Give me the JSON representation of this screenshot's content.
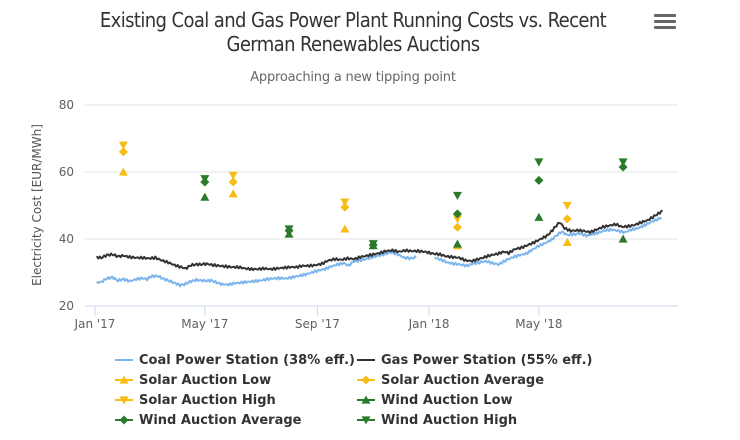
{
  "header": {
    "title_line1": "Existing Coal and Gas Power Plant Running Costs vs. Recent",
    "title_line2": "German Renewables Auctions",
    "subtitle": "Approaching a new tipping point",
    "menu_icon": "hamburger-menu-icon"
  },
  "colors": {
    "coal": "#7cb5ec",
    "gas": "#333333",
    "solar": "#f7bd13",
    "wind": "#2b7a2b",
    "grid": "#e6e6e6",
    "axis": "#ccd6eb"
  },
  "chart_data": {
    "type": "scatter",
    "title": "Existing Coal and Gas Power Plant Running Costs vs. Recent German Renewables Auctions",
    "subtitle": "Approaching a new tipping point",
    "xlabel": "",
    "ylabel": "Electricity Cost [EUR/MWh]",
    "ylim": [
      20,
      80
    ],
    "yticks": [
      20,
      40,
      60,
      80
    ],
    "xlim": [
      "2017-01-01",
      "2018-09-30"
    ],
    "xticks": [
      {
        "date": "2017-01-01",
        "label": "Jan '17"
      },
      {
        "date": "2017-05-01",
        "label": "May '17"
      },
      {
        "date": "2017-09-01",
        "label": "Sep '17"
      },
      {
        "date": "2018-01-01",
        "label": "Jan '18"
      },
      {
        "date": "2018-05-01",
        "label": "May '18"
      }
    ],
    "grid": true,
    "legend_position": "bottom",
    "lines": [
      {
        "name": "Coal Power Station (38% eff.)",
        "color": "#7cb5ec",
        "points": [
          [
            "2017-01-03",
            27.0
          ],
          [
            "2017-01-08",
            27.2
          ],
          [
            "2017-01-14",
            28.2
          ],
          [
            "2017-01-20",
            28.6
          ],
          [
            "2017-01-26",
            27.6
          ],
          [
            "2017-02-01",
            28.0
          ],
          [
            "2017-02-08",
            27.4
          ],
          [
            "2017-02-15",
            28.0
          ],
          [
            "2017-02-22",
            28.3
          ],
          [
            "2017-02-27",
            28.0
          ],
          [
            "2017-03-03",
            28.8
          ],
          [
            "2017-03-10",
            29.0
          ],
          [
            "2017-03-16",
            28.2
          ],
          [
            "2017-03-22",
            27.6
          ],
          [
            "2017-03-28",
            27.0
          ],
          [
            "2017-04-04",
            26.2
          ],
          [
            "2017-04-10",
            26.6
          ],
          [
            "2017-04-16",
            27.4
          ],
          [
            "2017-04-22",
            27.8
          ],
          [
            "2017-04-27",
            27.6
          ],
          [
            "2017-05-03",
            27.5
          ],
          [
            "2017-05-08",
            27.6
          ],
          [
            "2017-05-14",
            27.0
          ],
          [
            "2017-05-20",
            26.5
          ],
          [
            "2017-05-27",
            26.4
          ],
          [
            "2017-06-03",
            26.8
          ],
          [
            "2017-06-10",
            27.0
          ],
          [
            "2017-06-17",
            27.2
          ],
          [
            "2017-06-24",
            27.4
          ],
          [
            "2017-07-01",
            27.6
          ],
          [
            "2017-07-08",
            28.0
          ],
          [
            "2017-07-15",
            28.2
          ],
          [
            "2017-07-22",
            28.3
          ],
          [
            "2017-07-29",
            28.2
          ],
          [
            "2017-08-05",
            28.6
          ],
          [
            "2017-08-12",
            29.0
          ],
          [
            "2017-08-19",
            29.4
          ],
          [
            "2017-08-26",
            30.0
          ],
          [
            "2017-09-02",
            30.6
          ],
          [
            "2017-09-09",
            31.0
          ],
          [
            "2017-09-16",
            31.8
          ],
          [
            "2017-09-23",
            32.4
          ],
          [
            "2017-09-30",
            32.8
          ],
          [
            "2017-10-05",
            32.0
          ],
          [
            "2017-10-10",
            33.2
          ],
          [
            "2017-10-17",
            33.6
          ],
          [
            "2017-10-24",
            34.0
          ],
          [
            "2017-10-31",
            34.6
          ],
          [
            "2017-11-07",
            35.0
          ],
          [
            "2017-11-14",
            35.6
          ],
          [
            "2017-11-21",
            36.0
          ],
          [
            "2017-11-28",
            35.4
          ],
          [
            "2017-12-05",
            34.4
          ],
          [
            "2017-12-12",
            34.2
          ],
          [
            "2017-12-18",
            34.6
          ],
          [
            "2018-01-07",
            34.4
          ],
          [
            "2018-01-14",
            33.8
          ],
          [
            "2018-01-21",
            33.0
          ],
          [
            "2018-01-28",
            32.6
          ],
          [
            "2018-02-04",
            32.4
          ],
          [
            "2018-02-11",
            32.0
          ],
          [
            "2018-02-18",
            32.6
          ],
          [
            "2018-02-25",
            33.0
          ],
          [
            "2018-03-04",
            33.4
          ],
          [
            "2018-03-11",
            32.8
          ],
          [
            "2018-03-18",
            32.4
          ],
          [
            "2018-03-27",
            33.8
          ],
          [
            "2018-04-03",
            34.6
          ],
          [
            "2018-04-10",
            35.2
          ],
          [
            "2018-04-17",
            35.6
          ],
          [
            "2018-04-24",
            36.8
          ],
          [
            "2018-05-01",
            38.0
          ],
          [
            "2018-05-08",
            38.8
          ],
          [
            "2018-05-15",
            39.8
          ],
          [
            "2018-05-20",
            41.0
          ],
          [
            "2018-05-26",
            42.2
          ],
          [
            "2018-06-01",
            41.2
          ],
          [
            "2018-06-08",
            41.4
          ],
          [
            "2018-06-15",
            41.6
          ],
          [
            "2018-06-22",
            41.0
          ],
          [
            "2018-06-29",
            41.4
          ],
          [
            "2018-07-06",
            42.0
          ],
          [
            "2018-07-13",
            42.6
          ],
          [
            "2018-07-20",
            42.8
          ],
          [
            "2018-07-27",
            42.4
          ],
          [
            "2018-08-03",
            42.0
          ],
          [
            "2018-08-10",
            42.8
          ],
          [
            "2018-08-17",
            43.2
          ],
          [
            "2018-08-24",
            44.0
          ],
          [
            "2018-08-31",
            45.0
          ],
          [
            "2018-09-07",
            45.8
          ],
          [
            "2018-09-12",
            46.4
          ]
        ]
      },
      {
        "name": "Gas Power Station (55% eff.)",
        "color": "#333333",
        "points": [
          [
            "2017-01-03",
            34.6
          ],
          [
            "2017-01-08",
            34.4
          ],
          [
            "2017-01-14",
            35.2
          ],
          [
            "2017-01-20",
            35.4
          ],
          [
            "2017-01-26",
            34.8
          ],
          [
            "2017-02-01",
            35.0
          ],
          [
            "2017-02-08",
            34.6
          ],
          [
            "2017-02-15",
            34.4
          ],
          [
            "2017-02-22",
            34.4
          ],
          [
            "2017-03-01",
            34.2
          ],
          [
            "2017-03-08",
            34.4
          ],
          [
            "2017-03-15",
            33.6
          ],
          [
            "2017-03-22",
            33.0
          ],
          [
            "2017-03-29",
            32.2
          ],
          [
            "2017-04-05",
            31.6
          ],
          [
            "2017-04-10",
            31.2
          ],
          [
            "2017-04-16",
            32.2
          ],
          [
            "2017-04-22",
            32.4
          ],
          [
            "2017-04-27",
            32.4
          ],
          [
            "2017-05-03",
            32.6
          ],
          [
            "2017-05-10",
            32.2
          ],
          [
            "2017-05-17",
            32.0
          ],
          [
            "2017-05-24",
            31.8
          ],
          [
            "2017-05-31",
            31.6
          ],
          [
            "2017-06-07",
            31.6
          ],
          [
            "2017-06-14",
            31.2
          ],
          [
            "2017-06-21",
            31.0
          ],
          [
            "2017-06-28",
            31.0
          ],
          [
            "2017-07-05",
            31.2
          ],
          [
            "2017-07-12",
            31.0
          ],
          [
            "2017-07-19",
            31.2
          ],
          [
            "2017-07-26",
            31.4
          ],
          [
            "2017-08-02",
            31.6
          ],
          [
            "2017-08-09",
            31.6
          ],
          [
            "2017-08-16",
            32.0
          ],
          [
            "2017-08-23",
            32.0
          ],
          [
            "2017-08-30",
            32.2
          ],
          [
            "2017-09-06",
            32.6
          ],
          [
            "2017-09-13",
            33.6
          ],
          [
            "2017-09-20",
            34.0
          ],
          [
            "2017-09-27",
            33.8
          ],
          [
            "2017-10-04",
            34.2
          ],
          [
            "2017-10-11",
            34.0
          ],
          [
            "2017-10-18",
            34.6
          ],
          [
            "2017-10-25",
            35.0
          ],
          [
            "2017-11-01",
            35.4
          ],
          [
            "2017-11-08",
            35.8
          ],
          [
            "2017-11-15",
            36.4
          ],
          [
            "2017-11-22",
            36.6
          ],
          [
            "2017-11-29",
            36.2
          ],
          [
            "2017-12-06",
            36.6
          ],
          [
            "2017-12-13",
            36.4
          ],
          [
            "2017-12-20",
            36.4
          ],
          [
            "2017-12-27",
            36.2
          ],
          [
            "2018-01-06",
            35.6
          ],
          [
            "2018-01-13",
            35.4
          ],
          [
            "2018-01-20",
            34.8
          ],
          [
            "2018-01-27",
            34.6
          ],
          [
            "2018-02-03",
            34.4
          ],
          [
            "2018-02-10",
            33.6
          ],
          [
            "2018-02-17",
            33.4
          ],
          [
            "2018-02-24",
            34.0
          ],
          [
            "2018-03-03",
            34.6
          ],
          [
            "2018-03-10",
            35.2
          ],
          [
            "2018-03-17",
            35.6
          ],
          [
            "2018-03-24",
            36.2
          ],
          [
            "2018-03-29",
            35.8
          ],
          [
            "2018-04-05",
            37.0
          ],
          [
            "2018-04-12",
            37.4
          ],
          [
            "2018-04-19",
            38.2
          ],
          [
            "2018-04-26",
            39.0
          ],
          [
            "2018-05-03",
            40.0
          ],
          [
            "2018-05-10",
            41.0
          ],
          [
            "2018-05-16",
            42.6
          ],
          [
            "2018-05-20",
            44.0
          ],
          [
            "2018-05-24",
            45.0
          ],
          [
            "2018-05-29",
            43.2
          ],
          [
            "2018-06-05",
            42.4
          ],
          [
            "2018-06-12",
            42.6
          ],
          [
            "2018-06-19",
            42.4
          ],
          [
            "2018-06-26",
            42.0
          ],
          [
            "2018-07-03",
            42.8
          ],
          [
            "2018-07-10",
            43.6
          ],
          [
            "2018-07-17",
            44.0
          ],
          [
            "2018-07-24",
            44.4
          ],
          [
            "2018-07-31",
            43.6
          ],
          [
            "2018-08-07",
            43.8
          ],
          [
            "2018-08-14",
            44.2
          ],
          [
            "2018-08-21",
            45.0
          ],
          [
            "2018-08-28",
            45.6
          ],
          [
            "2018-09-04",
            46.8
          ],
          [
            "2018-09-10",
            47.8
          ],
          [
            "2018-09-13",
            48.6
          ]
        ]
      }
    ],
    "series": [
      {
        "name": "Solar Auction Low",
        "marker": "triangle-up",
        "color": "#f7bd13",
        "points": [
          [
            "2017-02-01",
            60.0
          ],
          [
            "2017-06-01",
            53.5
          ],
          [
            "2017-10-01",
            43.0
          ],
          [
            "2018-02-01",
            38.0
          ],
          [
            "2018-06-01",
            39.0
          ]
        ]
      },
      {
        "name": "Solar Auction Average",
        "marker": "diamond",
        "color": "#f7bd13",
        "points": [
          [
            "2017-02-01",
            66.0
          ],
          [
            "2017-06-01",
            57.0
          ],
          [
            "2017-10-01",
            49.5
          ],
          [
            "2018-02-01",
            43.5
          ],
          [
            "2018-06-01",
            46.0
          ]
        ]
      },
      {
        "name": "Solar Auction High",
        "marker": "triangle-down",
        "color": "#f7bd13",
        "points": [
          [
            "2017-02-01",
            68.0
          ],
          [
            "2017-06-01",
            59.0
          ],
          [
            "2017-10-01",
            51.0
          ],
          [
            "2018-02-01",
            46.0
          ],
          [
            "2018-06-01",
            50.0
          ]
        ]
      },
      {
        "name": "Wind Auction Low",
        "marker": "triangle-up",
        "color": "#2b7a2b",
        "points": [
          [
            "2017-05-01",
            52.5
          ],
          [
            "2017-08-01",
            41.5
          ],
          [
            "2017-11-01",
            38.0
          ],
          [
            "2018-02-01",
            38.5
          ],
          [
            "2018-05-01",
            46.5
          ],
          [
            "2018-08-01",
            40.0
          ]
        ]
      },
      {
        "name": "Wind Auction Average",
        "marker": "diamond",
        "color": "#2b7a2b",
        "points": [
          [
            "2017-05-01",
            57.0
          ],
          [
            "2017-08-01",
            42.5
          ],
          [
            "2017-11-01",
            38.2
          ],
          [
            "2018-02-01",
            47.5
          ],
          [
            "2018-05-01",
            57.5
          ],
          [
            "2018-08-01",
            61.5
          ]
        ]
      },
      {
        "name": "Wind Auction High",
        "marker": "triangle-down",
        "color": "#2b7a2b",
        "points": [
          [
            "2017-05-01",
            58.0
          ],
          [
            "2017-08-01",
            43.0
          ],
          [
            "2017-11-01",
            38.6
          ],
          [
            "2018-02-01",
            53.0
          ],
          [
            "2018-05-01",
            63.0
          ],
          [
            "2018-08-01",
            63.0
          ]
        ]
      }
    ]
  },
  "legend": [
    {
      "label": "Coal Power Station (38% eff.)",
      "symbol": "line",
      "color": "#7cb5ec"
    },
    {
      "label": "Gas Power Station (55% eff.)",
      "symbol": "line",
      "color": "#333333"
    },
    {
      "label": "Solar Auction Low",
      "symbol": "triangle-up",
      "color": "#f7bd13"
    },
    {
      "label": "Solar Auction Average",
      "symbol": "diamond",
      "color": "#f7bd13"
    },
    {
      "label": "Solar Auction High",
      "symbol": "triangle-down",
      "color": "#f7bd13"
    },
    {
      "label": "Wind Auction Low",
      "symbol": "triangle-up",
      "color": "#2b7a2b"
    },
    {
      "label": "Wind Auction Average",
      "symbol": "diamond",
      "color": "#2b7a2b"
    },
    {
      "label": "Wind Auction High",
      "symbol": "triangle-down",
      "color": "#2b7a2b"
    }
  ]
}
